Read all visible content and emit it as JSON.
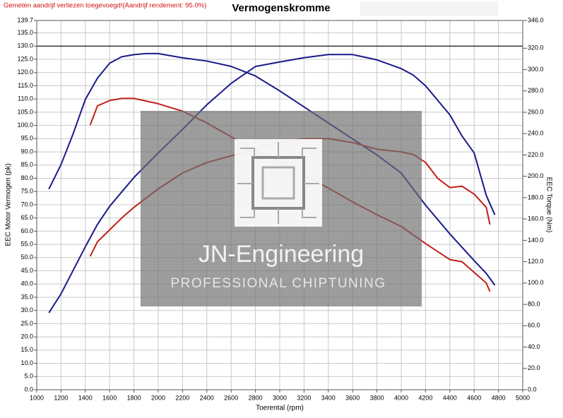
{
  "chart_data": {
    "type": "line",
    "title": "Vermogenskromme",
    "note": "Gemeten aandrijf verliezen toegevoegd!(Aandrijf rendement: 95.0%)",
    "xlabel": "Toerental (rpm)",
    "ylabel": "EEC Motor Vermogen (pk)",
    "y2label": "EEC Torque (Nm)",
    "watermark": {
      "title": "JN-Engineering",
      "subtitle": "PROFESSIONAL CHIPTUNING"
    },
    "xlim": [
      1000,
      5000
    ],
    "xticks": [
      1000,
      1200,
      1400,
      1600,
      1800,
      2000,
      2200,
      2400,
      2600,
      2800,
      3000,
      3200,
      3400,
      3600,
      3800,
      4000,
      4200,
      4400,
      4600,
      4800,
      5000
    ],
    "ylim": [
      0,
      139.7
    ],
    "yticks": [
      {
        "value": 0,
        "label": "0.0"
      },
      {
        "value": 5,
        "label": "5.0"
      },
      {
        "value": 10,
        "label": "10.0"
      },
      {
        "value": 15,
        "label": "15.0"
      },
      {
        "value": 20,
        "label": "20.0"
      },
      {
        "value": 25,
        "label": "25.0"
      },
      {
        "value": 30,
        "label": "30.0"
      },
      {
        "value": 35,
        "label": "35.0"
      },
      {
        "value": 40,
        "label": "40.0"
      },
      {
        "value": 45,
        "label": "45.0"
      },
      {
        "value": 50,
        "label": "50.0"
      },
      {
        "value": 55,
        "label": "55.0"
      },
      {
        "value": 60,
        "label": "60.0"
      },
      {
        "value": 65,
        "label": "65.0"
      },
      {
        "value": 70,
        "label": "70.0"
      },
      {
        "value": 75,
        "label": "75.0"
      },
      {
        "value": 80,
        "label": "80.0"
      },
      {
        "value": 85,
        "label": "85.0"
      },
      {
        "value": 90,
        "label": "90.0"
      },
      {
        "value": 95,
        "label": "95.0"
      },
      {
        "value": 100,
        "label": "100.0"
      },
      {
        "value": 105,
        "label": "105.0"
      },
      {
        "value": 110,
        "label": "110.0"
      },
      {
        "value": 115,
        "label": "115.0"
      },
      {
        "value": 120,
        "label": "120.0"
      },
      {
        "value": 125,
        "label": "125.0"
      },
      {
        "value": 130,
        "label": "130.0"
      },
      {
        "value": 135,
        "label": "135.0"
      },
      139.7
    ],
    "y2lim": [
      0,
      346
    ],
    "y2ticks": [
      {
        "value": 0,
        "label": "0.0"
      },
      {
        "value": 20,
        "label": "20.0"
      },
      {
        "value": 40,
        "label": "40.0"
      },
      {
        "value": 60,
        "label": "60.0"
      },
      {
        "value": 80,
        "label": "80.0"
      },
      {
        "value": 100,
        "label": "100.0"
      },
      {
        "value": 120,
        "label": "120.0"
      },
      {
        "value": 140,
        "label": "140.0"
      },
      {
        "value": 160,
        "label": "160.0"
      },
      {
        "value": 180,
        "label": "180.0"
      },
      {
        "value": 200,
        "label": "200.0"
      },
      {
        "value": 220,
        "label": "220.0"
      },
      {
        "value": 240,
        "label": "240.0"
      },
      {
        "value": 260,
        "label": "260.0"
      },
      {
        "value": 280,
        "label": "280.0"
      },
      {
        "value": 300,
        "label": "300.0"
      },
      {
        "value": 320,
        "label": "320.0"
      },
      {
        "value": 346,
        "label": "346.0"
      }
    ],
    "reference_line": 130,
    "grid": true,
    "series": [
      {
        "color": "#1a1a8c",
        "axis": "y",
        "x": [
          1100,
          1200,
          1300,
          1400,
          1500,
          1600,
          1800,
          2000,
          2200,
          2400,
          2600,
          2800,
          3000,
          3200,
          3400,
          3600,
          3800,
          4000,
          4100,
          4200,
          4400,
          4500,
          4600,
          4700,
          4770
        ],
        "values": [
          29.1,
          36.3,
          45.2,
          54.1,
          62.6,
          69.4,
          80.3,
          89.6,
          98.5,
          107.8,
          115.9,
          122.3,
          124,
          125.6,
          126.8,
          126.8,
          124.8,
          121.5,
          119,
          115,
          104,
          96,
          89.6,
          73.5,
          66.2
        ]
      },
      {
        "color": "#1a1a8c",
        "axis": "y2",
        "x": [
          1100,
          1200,
          1300,
          1400,
          1500,
          1600,
          1700,
          1800,
          1900,
          2000,
          2100,
          2200,
          2400,
          2600,
          2800,
          3000,
          3200,
          3400,
          3600,
          3800,
          4000,
          4200,
          4400,
          4600,
          4700,
          4770
        ],
        "values": [
          188,
          211,
          240,
          272,
          292,
          306,
          312,
          314,
          315,
          315,
          313,
          311,
          308,
          303,
          294,
          280,
          265,
          250,
          235,
          220,
          203,
          173,
          146,
          121,
          109,
          98
        ]
      },
      {
        "color": "#c0201a",
        "axis": "y",
        "x": [
          1440,
          1500,
          1600,
          1700,
          1800,
          2000,
          2200,
          2400,
          2600,
          2800,
          3000,
          3200,
          3400,
          3600,
          3800,
          4000,
          4100,
          4200,
          4300,
          4400,
          4500,
          4600,
          4700,
          4730
        ],
        "values": [
          50.5,
          56,
          60.5,
          65,
          69,
          76,
          82,
          86,
          88.5,
          91,
          93.5,
          95,
          95,
          93.5,
          91,
          90,
          89,
          86,
          80,
          76.5,
          77,
          74,
          69,
          62.5
        ]
      },
      {
        "color": "#c0201a",
        "axis": "y2",
        "x": [
          1440,
          1500,
          1600,
          1700,
          1800,
          2000,
          2200,
          2400,
          2600,
          2800,
          3000,
          3200,
          3400,
          3600,
          3800,
          4000,
          4200,
          4400,
          4500,
          4600,
          4700,
          4730
        ],
        "values": [
          248,
          266,
          271,
          273,
          273,
          268,
          261,
          250,
          237,
          224,
          214,
          201,
          189,
          176,
          164,
          153,
          137,
          122,
          120,
          110,
          100,
          92
        ]
      }
    ]
  }
}
